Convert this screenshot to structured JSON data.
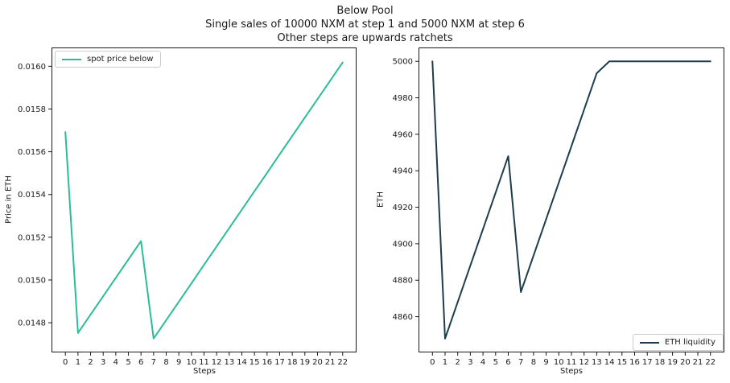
{
  "figure_title": {
    "line1": "Below Pool",
    "line2": "Single sales of 10000 NXM at step 1 and 5000 NXM at step 6",
    "line3": "Other steps are upwards ratchets"
  },
  "chart_data": [
    {
      "type": "line",
      "xlabel": "Steps",
      "ylabel": "Price in ETH",
      "grid": false,
      "x": [
        0,
        1,
        2,
        3,
        4,
        5,
        6,
        7,
        8,
        9,
        10,
        11,
        12,
        13,
        14,
        15,
        16,
        17,
        18,
        19,
        20,
        21,
        22
      ],
      "series": [
        {
          "name": "spot price below",
          "color": "#2abd97",
          "values": [
            0.015692,
            0.014752,
            0.014838,
            0.014924,
            0.01501,
            0.015096,
            0.015182,
            0.014726,
            0.014812,
            0.014898,
            0.014984,
            0.015071,
            0.015157,
            0.015243,
            0.015329,
            0.015415,
            0.015501,
            0.015588,
            0.015674,
            0.01576,
            0.015846,
            0.015932,
            0.016018
          ]
        }
      ],
      "xlim": [
        -1.1,
        23.1
      ],
      "ylim": [
        0.014661,
        0.016088
      ],
      "xticks": [
        0,
        1,
        2,
        3,
        4,
        5,
        6,
        7,
        8,
        9,
        10,
        11,
        12,
        13,
        14,
        15,
        16,
        17,
        18,
        19,
        20,
        21,
        22
      ],
      "ytick_values": [
        0.0148,
        0.015,
        0.0152,
        0.0154,
        0.0156,
        0.0158,
        0.016
      ],
      "ytick_labels": [
        "0.0148",
        "0.0150",
        "0.0152",
        "0.0154",
        "0.0156",
        "0.0158",
        "0.0160"
      ],
      "legend": {
        "position": "upper-left"
      }
    },
    {
      "type": "line",
      "xlabel": "Steps",
      "ylabel": "ETH",
      "grid": false,
      "x": [
        0,
        1,
        2,
        3,
        4,
        5,
        6,
        7,
        8,
        9,
        10,
        11,
        12,
        13,
        14,
        15,
        16,
        17,
        18,
        19,
        20,
        21,
        22
      ],
      "series": [
        {
          "name": "ETH liquidity",
          "color": "#1d3d4f",
          "values": [
            5000,
            4848,
            4868,
            4888,
            4908,
            4928,
            4948,
            4873.5,
            4893.5,
            4913.5,
            4933.5,
            4953.5,
            4973.5,
            4993.5,
            5000,
            5000,
            5000,
            5000,
            5000,
            5000,
            5000,
            5000,
            5000
          ]
        }
      ],
      "xlim": [
        -1.1,
        23.1
      ],
      "ylim": [
        4840.4,
        5007.6
      ],
      "xticks": [
        0,
        1,
        2,
        3,
        4,
        5,
        6,
        7,
        8,
        9,
        10,
        11,
        12,
        13,
        14,
        15,
        16,
        17,
        18,
        19,
        20,
        21,
        22
      ],
      "ytick_values": [
        4860,
        4880,
        4900,
        4920,
        4940,
        4960,
        4980,
        5000
      ],
      "ytick_labels": [
        "4860",
        "4880",
        "4900",
        "4920",
        "4940",
        "4960",
        "4980",
        "5000"
      ],
      "legend": {
        "position": "lower-right"
      }
    }
  ]
}
